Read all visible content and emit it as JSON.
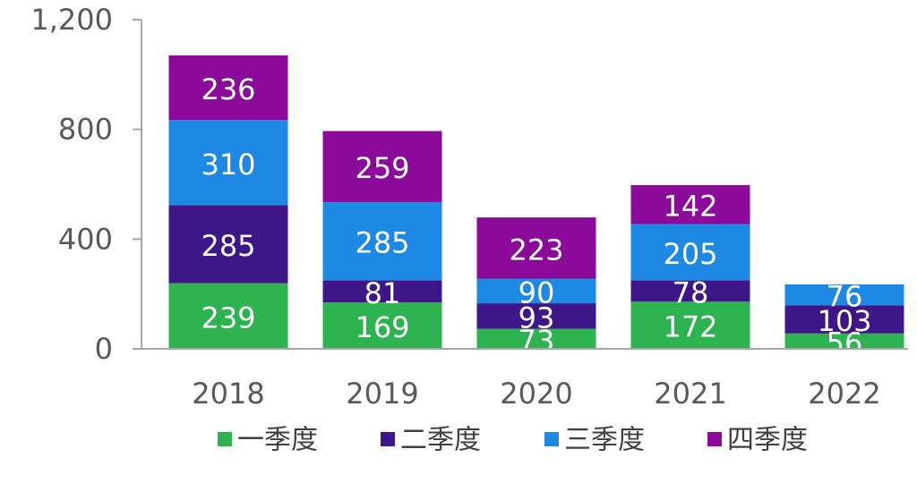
{
  "chart_data": {
    "type": "bar",
    "stacked": true,
    "categories": [
      "2018",
      "2019",
      "2020",
      "2021",
      "2022"
    ],
    "series": [
      {
        "name": "一季度",
        "color": "#2DB34F",
        "values": [
          239,
          169,
          73,
          172,
          56
        ]
      },
      {
        "name": "二季度",
        "color": "#3D1788",
        "values": [
          285,
          81,
          93,
          78,
          103
        ]
      },
      {
        "name": "三季度",
        "color": "#1E88E5",
        "values": [
          310,
          285,
          90,
          205,
          76
        ]
      },
      {
        "name": "四季度",
        "color": "#8B0A99",
        "values": [
          236,
          259,
          223,
          142,
          0
        ]
      }
    ],
    "yticks": [
      "0",
      "400",
      "800",
      "1,200"
    ],
    "ytick_values": [
      0,
      400,
      800,
      1200
    ],
    "ylim": [
      0,
      1200
    ],
    "grid": false,
    "legend_position": "bottom",
    "title": "",
    "xlabel": "",
    "ylabel": ""
  },
  "colors": {
    "axis": "#A6A6A6",
    "label_text": "#ffffff"
  }
}
